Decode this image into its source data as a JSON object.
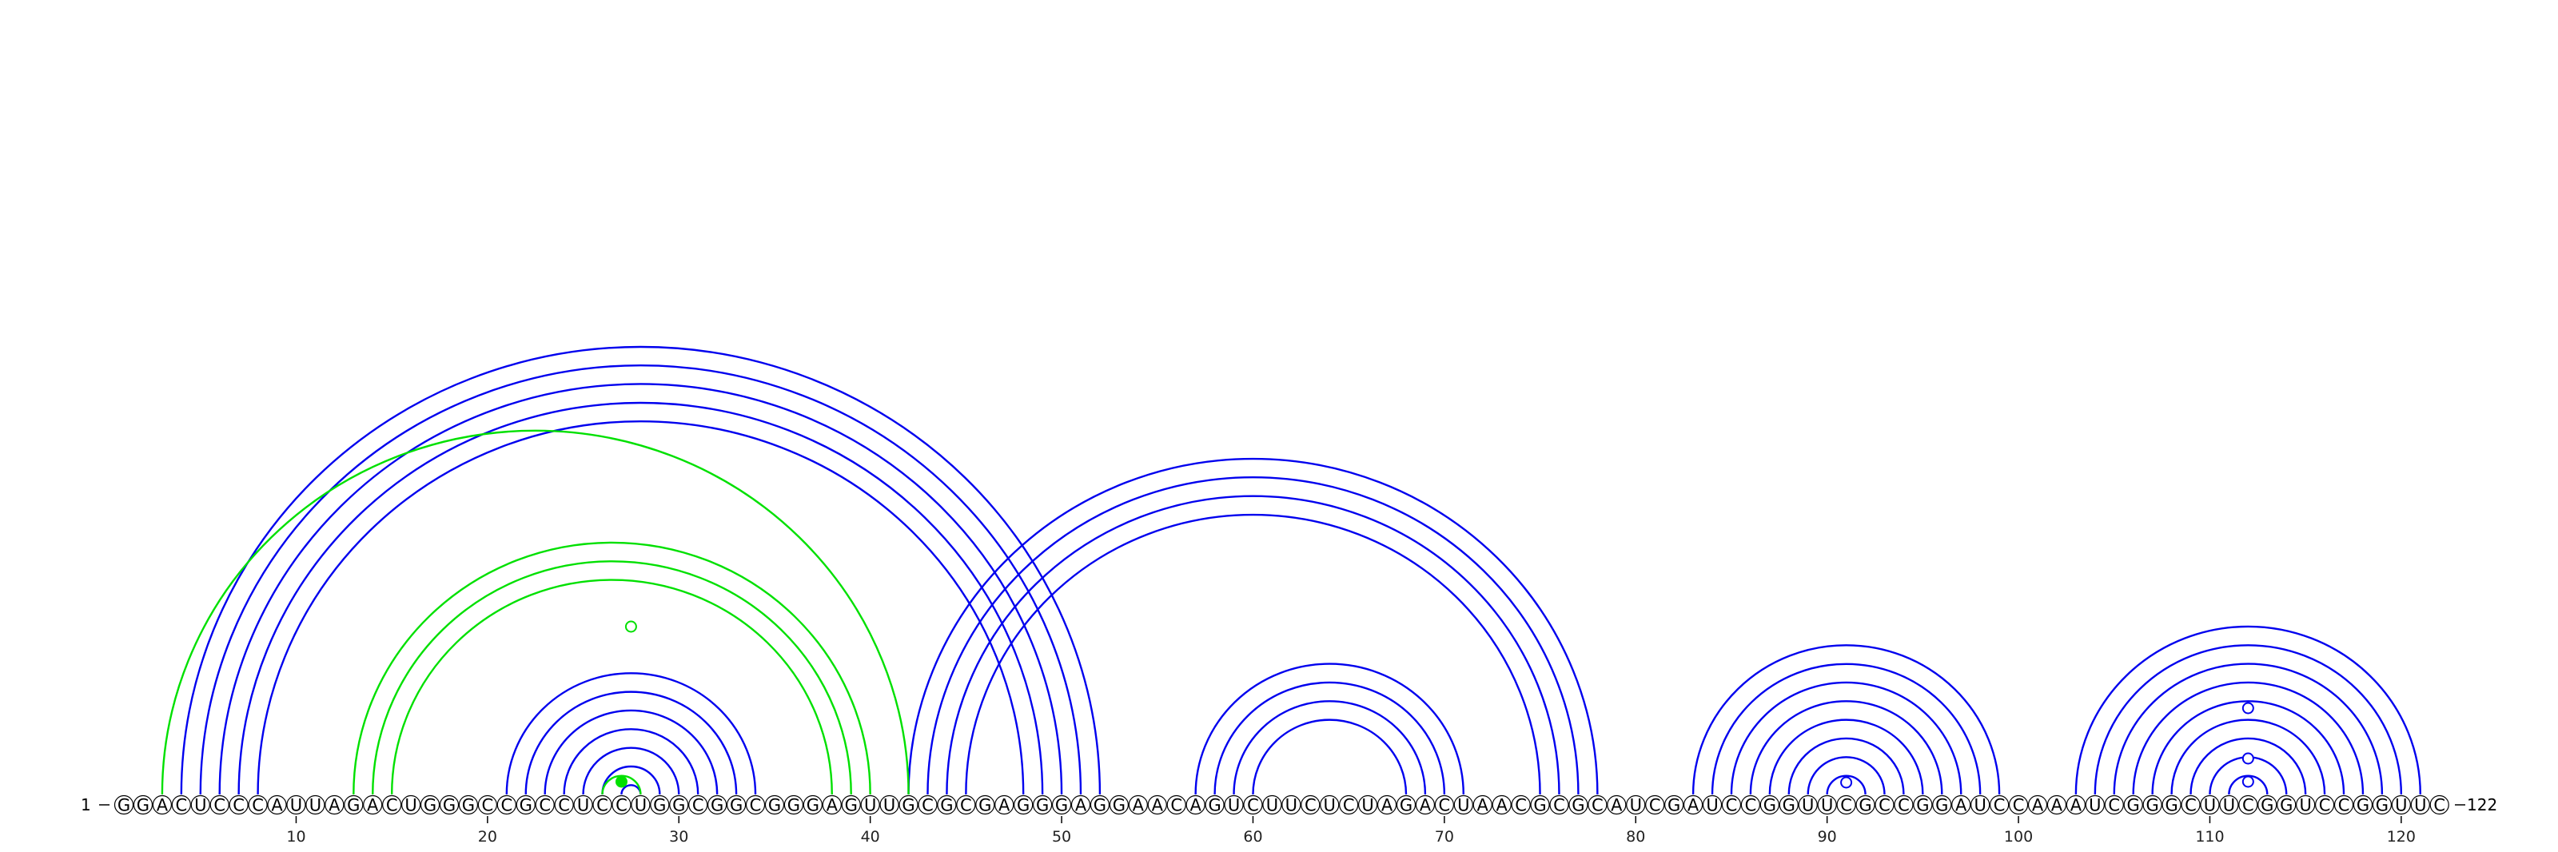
{
  "sequence": "GGACUCCCAUUAGACUGGGCCGCCUCCUGGCGGCGGGAGUUGCGCGAGGGAGGAACAGUCUUCUCUAGACUAACGCGCAUCGAUCCGGUUCGCCGGAUCCAAAUCGGGCUUCGGUCCGGUUC",
  "start_label": "1",
  "end_label": "122",
  "tick_labels": [
    "10",
    "20",
    "30",
    "40",
    "50",
    "60",
    "70",
    "80",
    "90",
    "100",
    "110",
    "120"
  ],
  "colors": {
    "blue_arc": "#0000ee",
    "green_arc": "#00e000",
    "text": "#000000"
  },
  "helices": [
    {
      "color": "blue",
      "i": 4,
      "j": 52,
      "length": 4
    },
    {
      "color": "blue",
      "i": 8,
      "j": 48,
      "length": 1
    },
    {
      "color": "blue",
      "i": 21,
      "j": 34,
      "length": 7
    },
    {
      "color": "blue",
      "i": 42,
      "j": 78,
      "length": 4
    },
    {
      "color": "blue",
      "i": 57,
      "j": 71,
      "length": 4
    },
    {
      "color": "blue",
      "i": 83,
      "j": 99,
      "length": 8
    },
    {
      "color": "blue",
      "i": 103,
      "j": 121,
      "length": 9
    },
    {
      "color": "green",
      "i": 3,
      "j": 42,
      "length": 1
    },
    {
      "color": "green",
      "i": 13,
      "j": 40,
      "length": 3
    },
    {
      "color": "green",
      "i": 26,
      "j": 28,
      "length": 1
    }
  ],
  "markers": [
    {
      "pos": 27.5,
      "helix": 8,
      "filled": false
    },
    {
      "pos": 27,
      "helix": 9,
      "filled": true
    },
    {
      "pos": 91,
      "helix": 5,
      "filled": false
    },
    {
      "pos": 112,
      "helix": 6,
      "filled": false
    },
    {
      "pos": 112,
      "helix": 6,
      "filled": false
    },
    {
      "pos": 112,
      "helix": 6,
      "filled": false
    }
  ]
}
